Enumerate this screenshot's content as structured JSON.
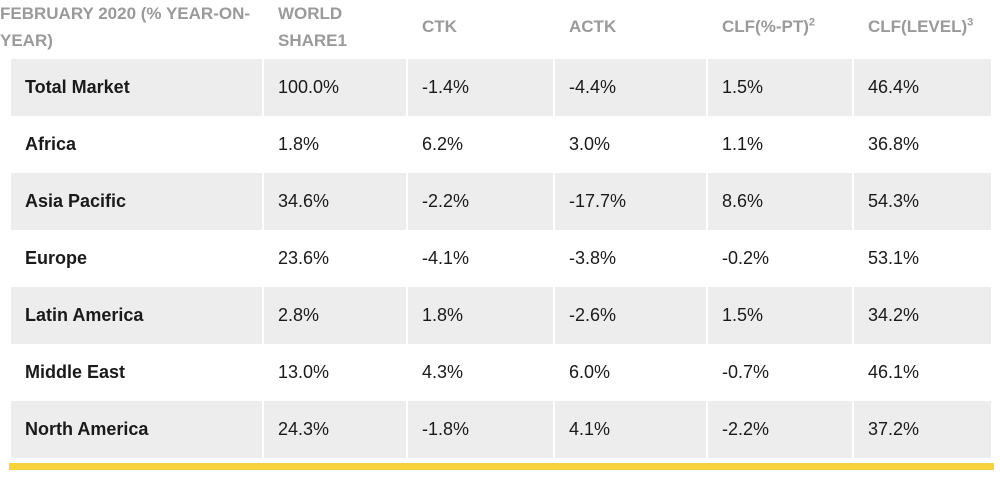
{
  "table": {
    "headers": [
      {
        "text": "February 2020 (% year-on-year)",
        "sup": ""
      },
      {
        "text": "World share1",
        "sup": ""
      },
      {
        "text": "CTK",
        "sup": ""
      },
      {
        "text": "ACTK",
        "sup": ""
      },
      {
        "text": "CLF(%-pt)",
        "sup": "2"
      },
      {
        "text": "CLF(level)",
        "sup": "3"
      }
    ],
    "rows": [
      {
        "region": "Total Market",
        "world_share": "100.0%",
        "ctk": "-1.4%",
        "actk": "-4.4%",
        "clf_pt": "1.5%",
        "clf_level": "46.4%"
      },
      {
        "region": "Africa",
        "world_share": "1.8%",
        "ctk": "6.2%",
        "actk": "3.0%",
        "clf_pt": "1.1%",
        "clf_level": "36.8%"
      },
      {
        "region": "Asia Pacific",
        "world_share": "34.6%",
        "ctk": "-2.2%",
        "actk": "-17.7%",
        "clf_pt": "8.6%",
        "clf_level": "54.3%"
      },
      {
        "region": "Europe",
        "world_share": "23.6%",
        "ctk": "-4.1%",
        "actk": "-3.8%",
        "clf_pt": "-0.2%",
        "clf_level": "53.1%"
      },
      {
        "region": "Latin America",
        "world_share": "2.8%",
        "ctk": "1.8%",
        "actk": "-2.6%",
        "clf_pt": "1.5%",
        "clf_level": "34.2%"
      },
      {
        "region": "Middle East",
        "world_share": "13.0%",
        "ctk": "4.3%",
        "actk": "6.0%",
        "clf_pt": "-0.7%",
        "clf_level": "46.1%"
      },
      {
        "region": "North America",
        "world_share": "24.3%",
        "ctk": "-1.8%",
        "actk": "4.1%",
        "clf_pt": "-2.2%",
        "clf_level": "37.2%"
      }
    ]
  },
  "colors": {
    "header_text": "#9a9a9a",
    "row_shade": "#ededed",
    "accent_bar": "#f6d23c"
  }
}
